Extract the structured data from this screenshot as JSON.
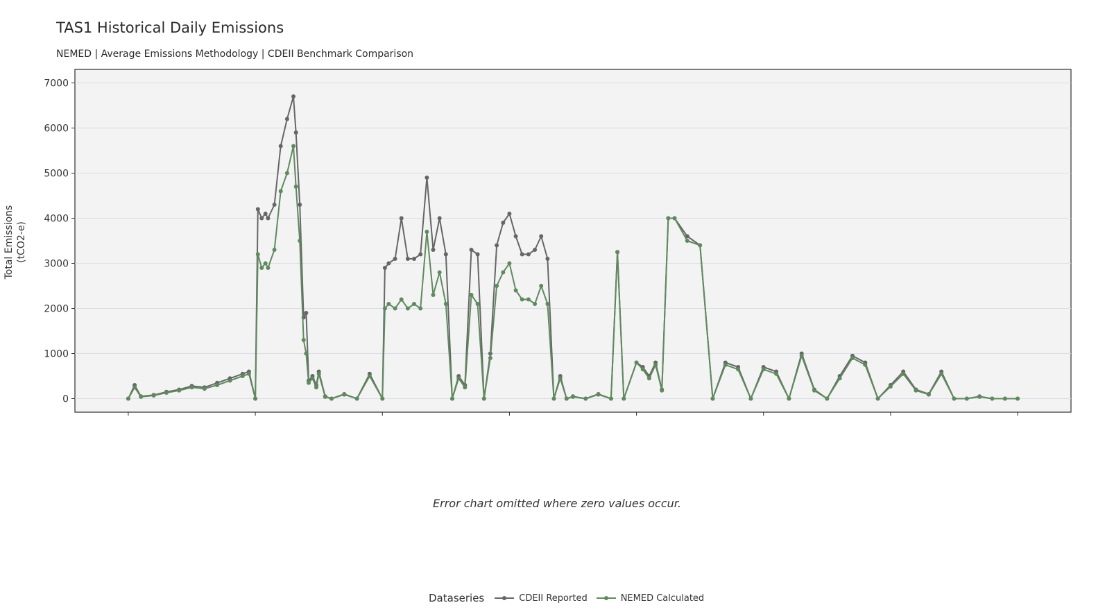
{
  "header": {
    "title": "TAS1 Historical Daily Emissions",
    "subtitle": "NEMED | Average Emissions Methodology | CDEII Benchmark Comparison"
  },
  "footer": {
    "note": "Error chart omitted where zero values occur."
  },
  "legend": {
    "title": "Dataseries",
    "items": [
      {
        "label": "CDEII Reported",
        "color": "#666666"
      },
      {
        "label": "NEMED Calculated",
        "color": "#5f8a5f"
      }
    ]
  },
  "chart_data": {
    "type": "line",
    "title": "TAS1 Historical Daily Emissions",
    "subtitle": "NEMED | Average Emissions Methodology | CDEII Benchmark Comparison",
    "ylabel": "Total Emissions (tCO2-e)",
    "ylabel_lines": [
      "Total Emissions",
      "(tCO2-e)"
    ],
    "ylim": [
      -300,
      7300
    ],
    "yticks": [
      0,
      1000,
      2000,
      3000,
      4000,
      5000,
      6000,
      7000
    ],
    "xlim": [
      -0.42,
      7.42
    ],
    "xticks": [
      0,
      1,
      2,
      3,
      4,
      5,
      6,
      7
    ],
    "xtick_labels": [
      "",
      "",
      "",
      "",
      "",
      "",
      "",
      ""
    ],
    "grid": true,
    "legend_position": "bottom",
    "x_is_approximate_period_index": true,
    "series": [
      {
        "name": "CDEII Reported",
        "color": "#666666",
        "x": [
          0,
          0.05,
          0.1,
          0.2,
          0.3,
          0.4,
          0.5,
          0.6,
          0.7,
          0.8,
          0.9,
          0.95,
          1.0,
          1.02,
          1.05,
          1.08,
          1.1,
          1.15,
          1.2,
          1.25,
          1.3,
          1.32,
          1.35,
          1.38,
          1.4,
          1.42,
          1.45,
          1.48,
          1.5,
          1.55,
          1.6,
          1.7,
          1.8,
          1.9,
          2.0,
          2.02,
          2.05,
          2.1,
          2.15,
          2.2,
          2.25,
          2.3,
          2.35,
          2.4,
          2.45,
          2.5,
          2.55,
          2.6,
          2.65,
          2.7,
          2.75,
          2.8,
          2.85,
          2.9,
          2.95,
          3.0,
          3.05,
          3.1,
          3.15,
          3.2,
          3.25,
          3.3,
          3.35,
          3.4,
          3.45,
          3.5,
          3.6,
          3.7,
          3.8,
          3.85,
          3.9,
          4.0,
          4.05,
          4.1,
          4.15,
          4.2,
          4.25,
          4.3,
          4.4,
          4.5,
          4.6,
          4.7,
          4.8,
          4.9,
          5.0,
          5.1,
          5.2,
          5.3,
          5.4,
          5.5,
          5.6,
          5.7,
          5.8,
          5.9,
          6.0,
          6.1,
          6.2,
          6.3,
          6.4,
          6.5,
          6.6,
          6.7,
          6.8,
          6.9,
          7.0
        ],
        "values": [
          0,
          300,
          50,
          80,
          150,
          200,
          280,
          250,
          350,
          450,
          550,
          600,
          0,
          4200,
          4000,
          4100,
          4000,
          4300,
          5600,
          6200,
          6700,
          5900,
          4300,
          1800,
          1900,
          400,
          500,
          300,
          600,
          50,
          0,
          100,
          0,
          550,
          0,
          2900,
          3000,
          3100,
          4000,
          3100,
          3100,
          3200,
          4900,
          3300,
          4000,
          3200,
          0,
          500,
          300,
          3300,
          3200,
          0,
          1000,
          3400,
          3900,
          4100,
          3600,
          3200,
          3200,
          3300,
          3600,
          3100,
          0,
          500,
          0,
          50,
          0,
          100,
          0,
          3250,
          0,
          800,
          700,
          500,
          800,
          200,
          4000,
          4000,
          3600,
          3400,
          0,
          800,
          700,
          0,
          700,
          600,
          0,
          1000,
          200,
          0,
          500,
          950,
          800,
          0,
          300,
          600,
          200,
          100,
          600,
          0,
          0,
          50,
          0,
          0,
          0
        ]
      },
      {
        "name": "NEMED Calculated",
        "color": "#5f8a5f",
        "x": [
          0,
          0.05,
          0.1,
          0.2,
          0.3,
          0.4,
          0.5,
          0.6,
          0.7,
          0.8,
          0.9,
          0.95,
          1.0,
          1.02,
          1.05,
          1.08,
          1.1,
          1.15,
          1.2,
          1.25,
          1.3,
          1.32,
          1.35,
          1.38,
          1.4,
          1.42,
          1.45,
          1.48,
          1.5,
          1.55,
          1.6,
          1.7,
          1.8,
          1.9,
          2.0,
          2.02,
          2.05,
          2.1,
          2.15,
          2.2,
          2.25,
          2.3,
          2.35,
          2.4,
          2.45,
          2.5,
          2.55,
          2.6,
          2.65,
          2.7,
          2.75,
          2.8,
          2.85,
          2.9,
          2.95,
          3.0,
          3.05,
          3.1,
          3.15,
          3.2,
          3.25,
          3.3,
          3.35,
          3.4,
          3.45,
          3.5,
          3.6,
          3.7,
          3.8,
          3.85,
          3.9,
          4.0,
          4.05,
          4.1,
          4.15,
          4.2,
          4.25,
          4.3,
          4.4,
          4.5,
          4.6,
          4.7,
          4.8,
          4.9,
          5.0,
          5.1,
          5.2,
          5.3,
          5.4,
          5.5,
          5.6,
          5.7,
          5.8,
          5.9,
          6.0,
          6.1,
          6.2,
          6.3,
          6.4,
          6.5,
          6.6,
          6.7,
          6.8,
          6.9,
          7.0
        ],
        "values": [
          0,
          250,
          40,
          70,
          130,
          180,
          250,
          220,
          300,
          400,
          500,
          550,
          0,
          3200,
          2900,
          3000,
          2900,
          3300,
          4600,
          5000,
          5600,
          4700,
          3500,
          1300,
          1000,
          350,
          450,
          250,
          550,
          40,
          0,
          90,
          0,
          500,
          0,
          2000,
          2100,
          2000,
          2200,
          2000,
          2100,
          2000,
          3700,
          2300,
          2800,
          2100,
          0,
          450,
          250,
          2300,
          2100,
          0,
          900,
          2500,
          2800,
          3000,
          2400,
          2200,
          2200,
          2100,
          2500,
          2100,
          0,
          450,
          0,
          40,
          0,
          90,
          0,
          3250,
          0,
          800,
          650,
          450,
          750,
          180,
          4000,
          4000,
          3500,
          3400,
          0,
          750,
          650,
          0,
          650,
          550,
          0,
          950,
          180,
          0,
          450,
          900,
          750,
          0,
          270,
          550,
          180,
          90,
          550,
          0,
          0,
          40,
          0,
          0,
          0
        ]
      }
    ]
  }
}
